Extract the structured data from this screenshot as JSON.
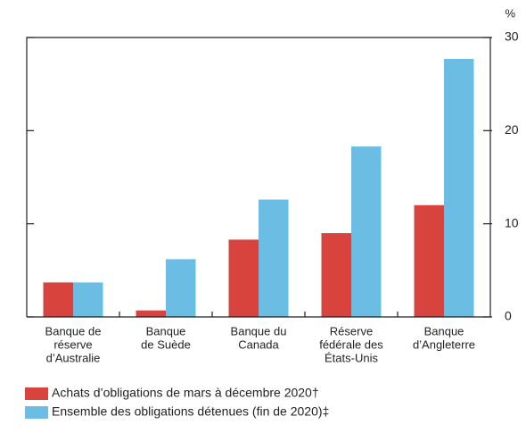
{
  "chart_data": {
    "type": "bar",
    "y_unit": "%",
    "categories": [
      [
        "Banque de",
        "réserve",
        "d’Australie"
      ],
      [
        "Banque",
        "de Suède"
      ],
      [
        "Banque du",
        "Canada"
      ],
      [
        "Réserve",
        "fédérale des",
        "États-Unis"
      ],
      [
        "Banque",
        "d’Angleterre"
      ]
    ],
    "series": [
      {
        "name": "Achats d’obligations de mars à décembre 2020†",
        "color": "#d9433d",
        "values": [
          3.7,
          0.7,
          8.3,
          9.0,
          12.0
        ]
      },
      {
        "name": "Ensemble des obligations détenues (fin de 2020)‡",
        "color": "#6bbde3",
        "values": [
          3.7,
          6.2,
          12.6,
          18.3,
          27.7
        ]
      }
    ],
    "ylim": [
      0,
      30
    ],
    "yticks": [
      0,
      10,
      20,
      30
    ]
  }
}
